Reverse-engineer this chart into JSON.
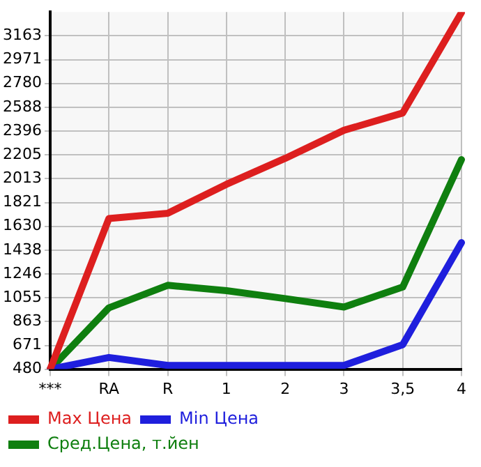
{
  "chart_data": {
    "type": "line",
    "categories": [
      "***",
      "RA",
      "R",
      "1",
      "2",
      "3",
      "3,5",
      "4"
    ],
    "series": [
      {
        "name": "Max Цена",
        "color": "#dd1f1f",
        "values": [
          480,
          1693,
          1735,
          1968,
          2177,
          2403,
          2542,
          3350
        ]
      },
      {
        "name": "Min Цена",
        "color": "#1f1fdd",
        "values": [
          480,
          574,
          510,
          510,
          510,
          510,
          677,
          1499
        ]
      },
      {
        "name": "Сред.Цена, т.йен",
        "color": "#0f7f0f",
        "values": [
          480,
          974,
          1155,
          1112,
          1048,
          980,
          1141,
          2167
        ]
      }
    ],
    "ylim": [
      480,
      3355
    ],
    "yticks": [
      480,
      671,
      863,
      1055,
      1246,
      1438,
      1630,
      1821,
      2013,
      2205,
      2396,
      2588,
      2780,
      2971,
      3163
    ],
    "grid": true,
    "legend": "bottom",
    "marker": "none",
    "line_style": "solid"
  }
}
